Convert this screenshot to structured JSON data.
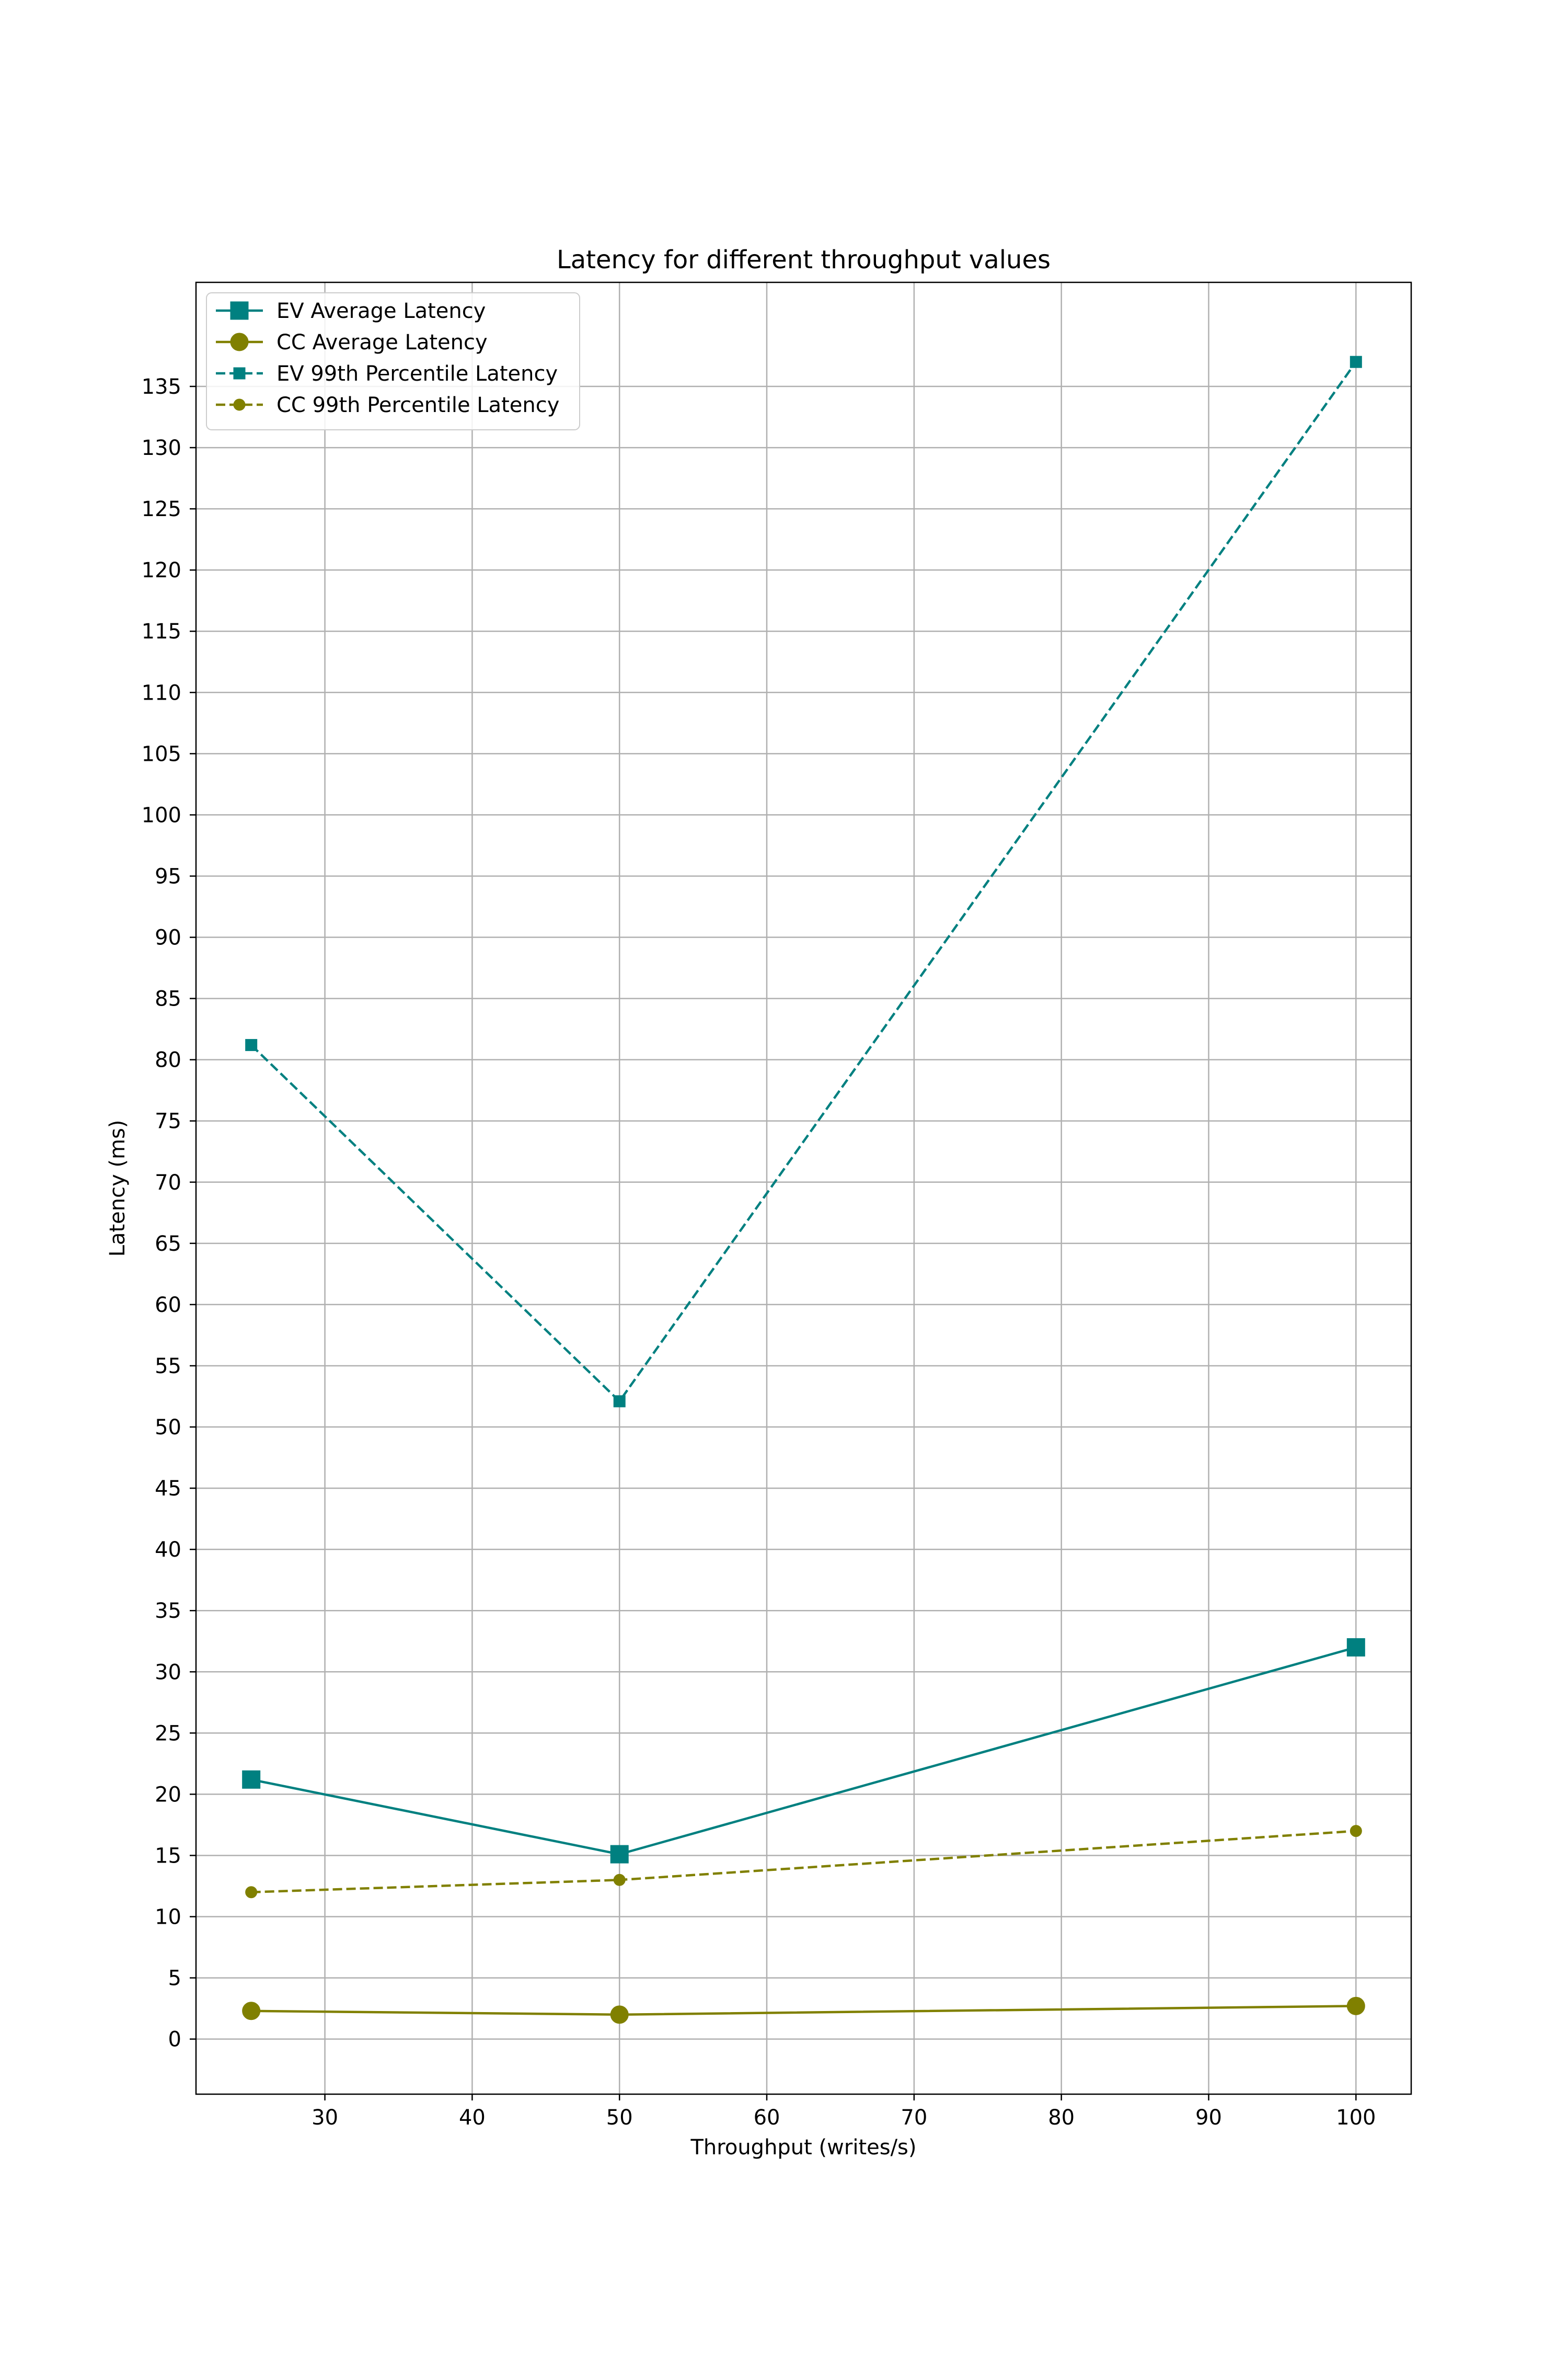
{
  "chart_data": {
    "type": "line",
    "title": "Latency for different throughput values",
    "xlabel": "Throughput (writes/s)",
    "ylabel": "Latency (ms)",
    "x": [
      25,
      50,
      100
    ],
    "xlim": [
      21.25,
      103.75
    ],
    "ylim": [
      -4.5,
      143.5
    ],
    "xticks": [
      30,
      40,
      50,
      60,
      70,
      80,
      90,
      100
    ],
    "yticks": [
      0,
      5,
      10,
      15,
      20,
      25,
      30,
      35,
      40,
      45,
      50,
      55,
      60,
      65,
      70,
      75,
      80,
      85,
      90,
      95,
      100,
      105,
      110,
      115,
      120,
      125,
      130,
      135
    ],
    "grid": true,
    "legend_position": "top-left",
    "series": [
      {
        "name": "EV Average Latency",
        "values": [
          21.2,
          15.1,
          32.0
        ],
        "color": "#008080",
        "line_style": "solid",
        "marker": "square",
        "marker_size": "large"
      },
      {
        "name": "CC Average Latency",
        "values": [
          2.3,
          2.0,
          2.7
        ],
        "color": "#808000",
        "line_style": "solid",
        "marker": "circle",
        "marker_size": "large"
      },
      {
        "name": "EV 99th Percentile Latency",
        "values": [
          81.2,
          52.1,
          137.0
        ],
        "color": "#008080",
        "line_style": "dashed",
        "marker": "square",
        "marker_size": "small"
      },
      {
        "name": "CC 99th Percentile Latency",
        "values": [
          12.0,
          13.0,
          17.0
        ],
        "color": "#808000",
        "line_style": "dashed",
        "marker": "circle",
        "marker_size": "small"
      }
    ]
  }
}
